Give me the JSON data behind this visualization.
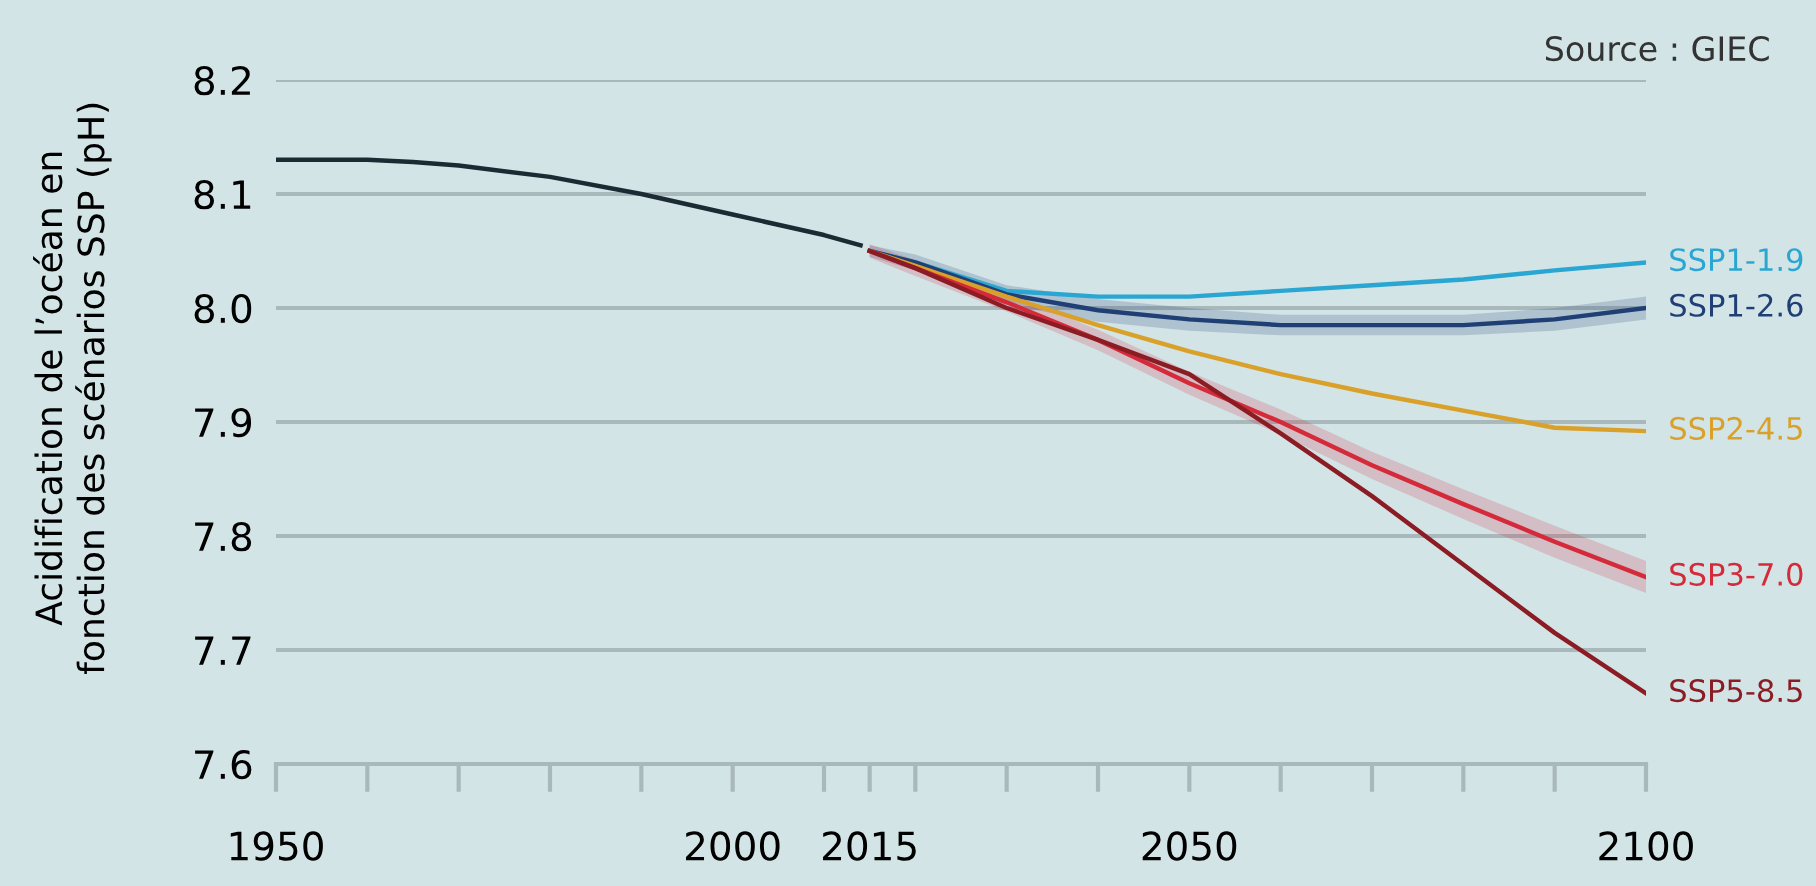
{
  "chart_data": {
    "type": "line",
    "ylabel": "Acidification de l’océan en\nfonction des scénarios SSP (pH)",
    "annotations": [
      "Source : GIEC"
    ],
    "xlim": [
      1950,
      2100
    ],
    "ylim": [
      7.6,
      8.2
    ],
    "xticks": [
      1950,
      {
        "value": 1960,
        "label": null
      },
      {
        "value": 1970,
        "label": null
      },
      {
        "value": 1980,
        "label": null
      },
      {
        "value": 1990,
        "label": null
      },
      2000,
      {
        "value": 2010,
        "label": null
      },
      2015,
      {
        "value": 2020,
        "label": null
      },
      {
        "value": 2030,
        "label": null
      },
      {
        "value": 2040,
        "label": null
      },
      2050,
      {
        "value": 2060,
        "label": null
      },
      {
        "value": 2070,
        "label": null
      },
      {
        "value": 2080,
        "label": null
      },
      {
        "value": 2090,
        "label": null
      },
      2100
    ],
    "yticks": [
      7.6,
      7.7,
      7.8,
      7.9,
      {
        "value": 8,
        "label": "8.0"
      },
      8.1,
      8.2
    ],
    "grid": "y",
    "legend": false,
    "line_style": "solid",
    "marker": "none",
    "series": [
      {
        "color": "#1c2b33",
        "x": [
          1950,
          1960,
          1965,
          1970,
          1980,
          1990,
          2000,
          2010,
          2014
        ],
        "values": [
          8.13,
          8.13,
          8.128,
          8.125,
          8.115,
          8.1,
          8.082,
          8.064,
          8.055
        ]
      },
      {
        "name": "SSP1-1.9",
        "color": "#2aa6d2",
        "x": [
          2015,
          2020,
          2030,
          2040,
          2050,
          2060,
          2070,
          2080,
          2090,
          2100
        ],
        "values": [
          8.05,
          8.04,
          8.015,
          8.01,
          8.01,
          8.015,
          8.02,
          8.025,
          8.033,
          8.04
        ]
      },
      {
        "name": "SSP1-2.6",
        "color": "#1f3f75",
        "x": [
          2015,
          2020,
          2030,
          2040,
          2050,
          2060,
          2070,
          2080,
          2090,
          2100
        ],
        "values": [
          8.05,
          8.04,
          8.012,
          7.998,
          7.99,
          7.985,
          7.985,
          7.985,
          7.99,
          8.0
        ],
        "lower": [
          8.045,
          8.033,
          8.003,
          7.988,
          7.98,
          7.976,
          7.976,
          7.976,
          7.98,
          7.99
        ],
        "upper": [
          8.055,
          8.047,
          8.02,
          8.008,
          8.0,
          7.994,
          7.994,
          7.994,
          8.0,
          8.01
        ]
      },
      {
        "name": "SSP2-4.5",
        "color": "#d9a02a",
        "x": [
          2015,
          2020,
          2030,
          2040,
          2050,
          2060,
          2070,
          2080,
          2090,
          2100
        ],
        "values": [
          8.05,
          8.037,
          8.01,
          7.985,
          7.962,
          7.942,
          7.925,
          7.91,
          7.895,
          7.892
        ]
      },
      {
        "name": "SSP3-7.0",
        "color": "#d42a3a",
        "x": [
          2015,
          2020,
          2030,
          2040,
          2050,
          2060,
          2070,
          2080,
          2090,
          2100
        ],
        "values": [
          8.05,
          8.035,
          8.005,
          7.972,
          7.934,
          7.9,
          7.862,
          7.828,
          7.795,
          7.764
        ],
        "lower": [
          8.044,
          8.028,
          7.997,
          7.963,
          7.924,
          7.889,
          7.85,
          7.815,
          7.781,
          7.75
        ],
        "upper": [
          8.056,
          8.042,
          8.013,
          7.981,
          7.944,
          7.911,
          7.874,
          7.841,
          7.809,
          7.778
        ]
      },
      {
        "name": "SSP5-8.5",
        "color": "#8c1c24",
        "x": [
          2015,
          2020,
          2030,
          2040,
          2050,
          2060,
          2070,
          2080,
          2090,
          2100
        ],
        "values": [
          8.05,
          8.035,
          8.0,
          7.972,
          7.942,
          7.89,
          7.835,
          7.775,
          7.715,
          7.662
        ]
      }
    ]
  }
}
